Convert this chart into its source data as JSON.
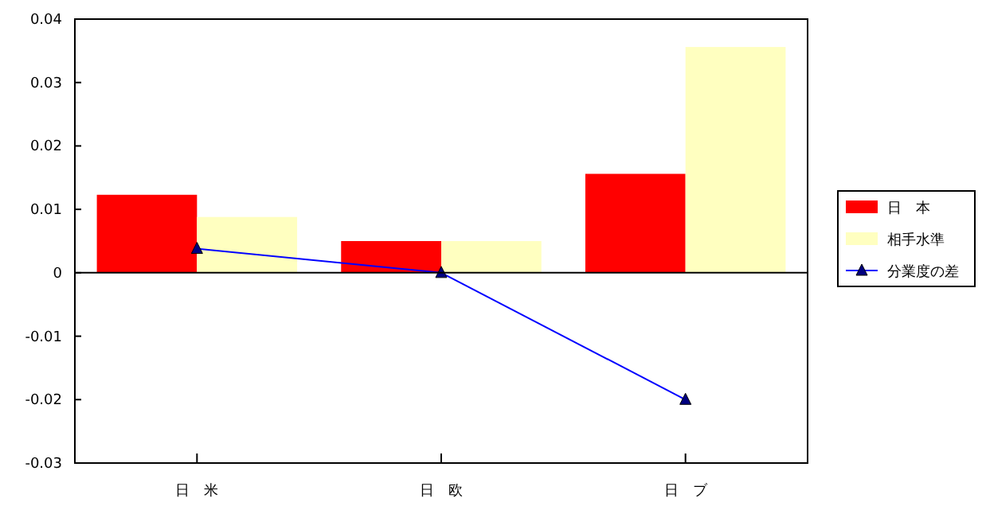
{
  "chart_data": {
    "type": "bar",
    "categories": [
      "日　米",
      "日　欧",
      "日　ブ"
    ],
    "series": [
      {
        "name": "日　本",
        "color": "#ff0000",
        "values": [
          0.0123,
          0.005,
          0.0156
        ]
      },
      {
        "name": "相手水準",
        "color": "#ffffc0",
        "values": [
          0.0088,
          0.005,
          0.0356
        ]
      },
      {
        "name": "分業度の差",
        "type": "line",
        "color": "#0000ff",
        "marker": "triangle",
        "values": [
          0.0038,
          0,
          -0.02
        ]
      }
    ],
    "ylim": [
      -0.03,
      0.04
    ],
    "yticks": [
      -0.03,
      -0.02,
      -0.01,
      0,
      0.01,
      0.02,
      0.03,
      0.04
    ],
    "grid": false,
    "legend": "right",
    "ref_lines": [
      {
        "axis": "y",
        "value": 0,
        "color": "#000000"
      }
    ]
  }
}
